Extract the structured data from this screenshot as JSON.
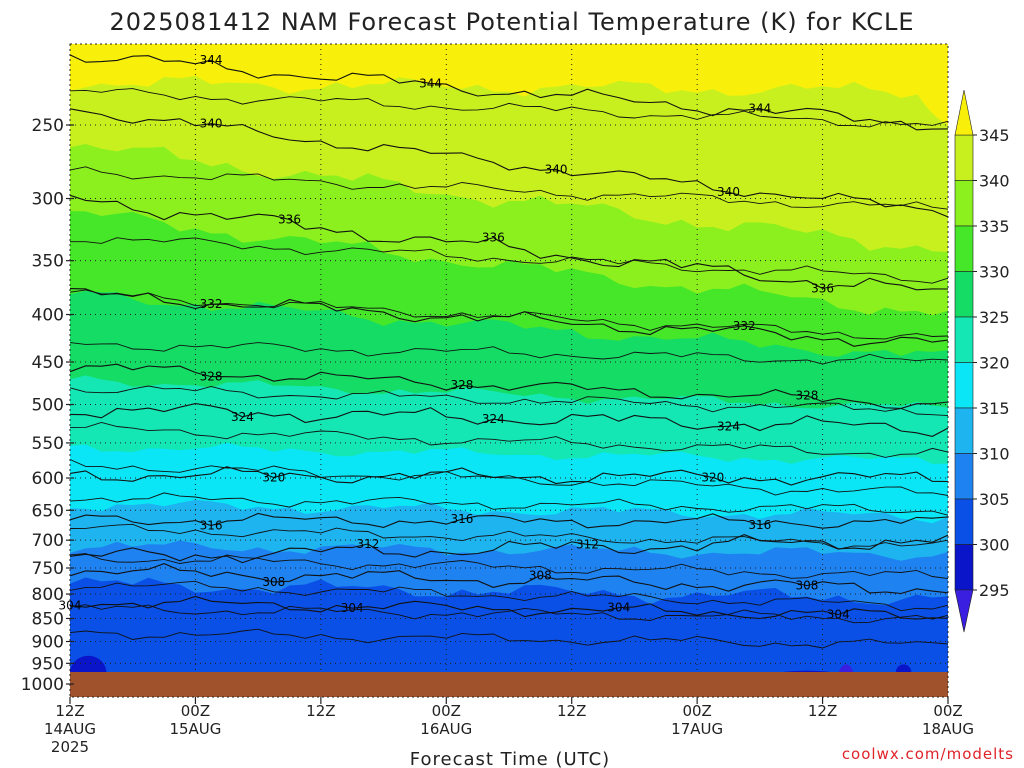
{
  "chart_data": {
    "type": "heatmap",
    "title": "2025081412 NAM Forecast Potential Temperature (K) for KCLE",
    "xlabel": "Forecast Time (UTC)",
    "ylabel": "",
    "credit": "coolwx.com/modelts",
    "y_ticks": [
      "250",
      "300",
      "350",
      "400",
      "450",
      "500",
      "550",
      "600",
      "650",
      "700",
      "750",
      "800",
      "850",
      "900",
      "950",
      "1000"
    ],
    "y_scale": "pressure (hPa), inverted",
    "x_ticks": [
      {
        "line1": "12Z",
        "line2": "14AUG",
        "line3": "2025"
      },
      {
        "line1": "00Z",
        "line2": "15AUG",
        "line3": ""
      },
      {
        "line1": "12Z",
        "line2": "",
        "line3": ""
      },
      {
        "line1": "00Z",
        "line2": "16AUG",
        "line3": ""
      },
      {
        "line1": "12Z",
        "line2": "",
        "line3": ""
      },
      {
        "line1": "00Z",
        "line2": "17AUG",
        "line3": ""
      },
      {
        "line1": "12Z",
        "line2": "",
        "line3": ""
      },
      {
        "line1": "00Z",
        "line2": "18AUG",
        "line3": ""
      }
    ],
    "x_hours": [
      0,
      12,
      24,
      36,
      48,
      60,
      72,
      84
    ],
    "colorbar": {
      "ticks": [
        "295",
        "300",
        "305",
        "310",
        "315",
        "320",
        "325",
        "330",
        "335",
        "340",
        "345"
      ],
      "bins": [
        {
          "range": "<295",
          "color": "#3a1fe0"
        },
        {
          "range": "295-300",
          "color": "#0a14c8"
        },
        {
          "range": "300-305",
          "color": "#0a50e6"
        },
        {
          "range": "305-310",
          "color": "#1e82f0"
        },
        {
          "range": "310-315",
          "color": "#1eb4f0"
        },
        {
          "range": "315-320",
          "color": "#0ae6f5"
        },
        {
          "range": "320-325",
          "color": "#14e6b4"
        },
        {
          "range": "325-330",
          "color": "#14dc64"
        },
        {
          "range": "330-335",
          "color": "#46e628"
        },
        {
          "range": "335-340",
          "color": "#8cf01e"
        },
        {
          "range": "340-345",
          "color": "#c8f01e"
        },
        {
          "range": ">345",
          "color": "#f8f00a"
        }
      ]
    },
    "ground_color": "#a0522d",
    "contour_interval_K": 4,
    "contours": [
      {
        "theta": 304,
        "p_start": 815,
        "p_end": 845,
        "labels": [
          {
            "text": "304",
            "hour": 0.5
          },
          {
            "text": "304",
            "hour": 27
          },
          {
            "text": "304",
            "hour": 52
          },
          {
            "text": "304",
            "hour": 74
          }
        ]
      },
      {
        "theta": 308,
        "p_start": 755,
        "p_end": 790,
        "labels": [
          {
            "text": "308",
            "hour": 19
          },
          {
            "text": "308",
            "hour": 45
          },
          {
            "text": "308",
            "hour": 71
          }
        ]
      },
      {
        "theta": 312,
        "p_start": 730,
        "p_end": 700,
        "labels": [
          {
            "text": "312",
            "hour": 28
          },
          {
            "text": "312",
            "hour": 50
          }
        ]
      },
      {
        "theta": 316,
        "p_start": 665,
        "p_end": 670,
        "labels": [
          {
            "text": "316",
            "hour": 14
          },
          {
            "text": "316",
            "hour": 38
          },
          {
            "text": "316",
            "hour": 66
          }
        ]
      },
      {
        "theta": 320,
        "p_start": 595,
        "p_end": 600,
        "labels": [
          {
            "text": "320",
            "hour": 20
          },
          {
            "text": "320",
            "hour": 62
          }
        ]
      },
      {
        "theta": 324,
        "p_start": 505,
        "p_end": 530,
        "labels": [
          {
            "text": "324",
            "hour": 17
          },
          {
            "text": "324",
            "hour": 41
          },
          {
            "text": "324",
            "hour": 63
          }
        ]
      },
      {
        "theta": 328,
        "p_start": 455,
        "p_end": 500,
        "labels": [
          {
            "text": "328",
            "hour": 14
          },
          {
            "text": "328",
            "hour": 38
          },
          {
            "text": "328",
            "hour": 71
          }
        ]
      },
      {
        "theta": 332,
        "p_start": 380,
        "p_end": 430,
        "labels": [
          {
            "text": "332",
            "hour": 13
          },
          {
            "text": "332",
            "hour": 64
          }
        ]
      },
      {
        "theta": 336,
        "p_start": 300,
        "p_end": 380,
        "labels": [
          {
            "text": "336",
            "hour": 21
          },
          {
            "text": "336",
            "hour": 40
          },
          {
            "text": "336",
            "hour": 72
          }
        ]
      },
      {
        "theta": 340,
        "p_start": 240,
        "p_end": 310,
        "labels": [
          {
            "text": "340",
            "hour": 13
          },
          {
            "text": "340",
            "hour": 47
          },
          {
            "text": "340",
            "hour": 63
          }
        ]
      },
      {
        "theta": 344,
        "p_start": 210,
        "p_end": 250,
        "labels": [
          {
            "text": "344",
            "hour": 14
          },
          {
            "text": "344",
            "hour": 35
          },
          {
            "text": "344",
            "hour": 66
          }
        ]
      }
    ],
    "fills": [
      {
        "bin": "<295",
        "p_top": 940,
        "p_bot": 1000
      },
      {
        "bin": "295-300",
        "p_top": 975,
        "p_bot": 1000
      },
      {
        "bin": "300-305",
        "p_top": 840,
        "p_bot": 1000
      },
      {
        "bin": "305-310",
        "p_top": 745,
        "p_bot": 840
      },
      {
        "bin": "310-315",
        "p_top": 690,
        "p_bot": 745
      },
      {
        "bin": "315-320",
        "p_top": 600,
        "p_bot": 690
      },
      {
        "bin": "320-325",
        "p_top": 510,
        "p_bot": 600
      },
      {
        "bin": "325-330",
        "p_top": 450,
        "p_bot": 510
      },
      {
        "bin": "330-335",
        "p_top": 345,
        "p_bot": 450
      },
      {
        "bin": "335-340",
        "p_top": 285,
        "p_bot": 345
      },
      {
        "bin": "340-345",
        "p_top": 210,
        "p_bot": 285
      },
      {
        "bin": ">345",
        "p_top": 200,
        "p_bot": 220
      }
    ]
  }
}
